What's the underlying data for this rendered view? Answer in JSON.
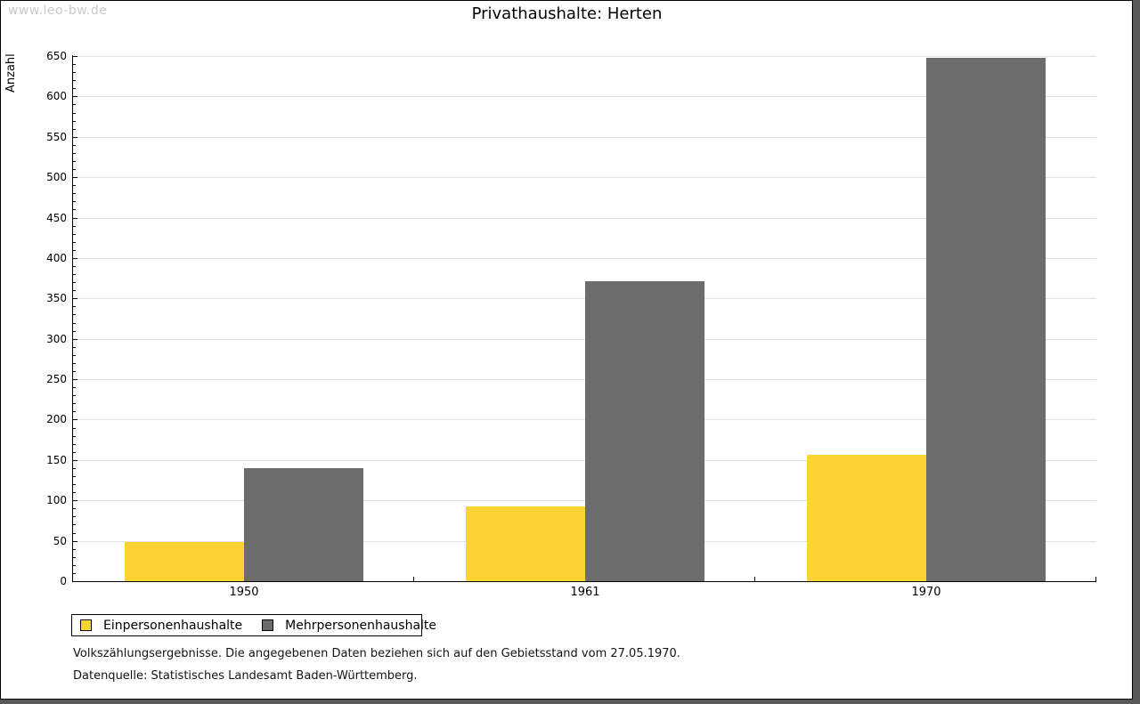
{
  "watermark": "www.leo-bw.de",
  "chart_data": {
    "type": "bar",
    "title": "Privathaushalte: Herten",
    "xlabel": "",
    "ylabel": "Anzahl",
    "categories": [
      "1950",
      "1961",
      "1970"
    ],
    "series": [
      {
        "name": "Einpersonenhaushalte",
        "color": "#FCD335",
        "values": [
          48,
          93,
          156
        ]
      },
      {
        "name": "Mehrpersonenhaushalte",
        "color": "#6C6C6C",
        "values": [
          140,
          371,
          648
        ]
      }
    ],
    "ylim": [
      0,
      650
    ],
    "ytick_step": 50,
    "yminor_step": 10,
    "grid": true,
    "legend_position": "bottom-left"
  },
  "footer": {
    "line1": "Volkszählungsergebnisse. Die angegebenen Daten beziehen sich auf den Gebietsstand vom 27.05.1970.",
    "line2": "Datenquelle: Statistisches Landesamt Baden-Württemberg."
  }
}
